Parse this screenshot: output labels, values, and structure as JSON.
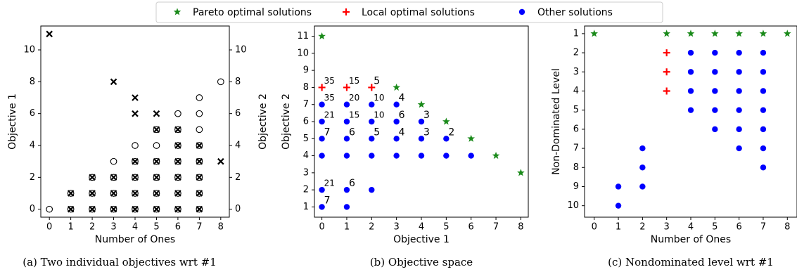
{
  "legend": {
    "placement": "top-center",
    "items": [
      {
        "label": "Pareto optimal solutions",
        "marker": "star",
        "color": "#1a8a1a"
      },
      {
        "label": "Local optimal solutions",
        "marker": "plus",
        "color": "#ff0000"
      },
      {
        "label": "Other solutions",
        "marker": "dot",
        "color": "#0000ff"
      }
    ]
  },
  "colors": {
    "pareto": "#1a8a1a",
    "local": "#ff0000",
    "other": "#0000ff",
    "axis": "#000000"
  },
  "chart_data": [
    {
      "type": "scatter",
      "caption": "(a) Two individual objectives wrt #1",
      "xlabel": "Number of Ones",
      "ylabel": "Objective 1",
      "ylabel_right": "Objective 2",
      "xlim": [
        -0.4,
        8.4
      ],
      "ylim": [
        -0.5,
        11.5
      ],
      "xticks": [
        0,
        1,
        2,
        3,
        4,
        5,
        6,
        7,
        8
      ],
      "yticks": [
        0,
        2,
        4,
        6,
        8,
        10
      ],
      "grid": false,
      "series": [
        {
          "marker": "x",
          "points": [
            [
              0,
              11
            ],
            [
              1,
              1
            ],
            [
              2,
              2
            ],
            [
              3,
              8
            ],
            [
              4,
              7
            ],
            [
              5,
              6
            ],
            [
              6,
              5
            ],
            [
              7,
              4
            ],
            [
              8,
              3
            ],
            [
              1,
              0
            ],
            [
              2,
              0
            ],
            [
              2,
              1
            ],
            [
              3,
              0
            ],
            [
              3,
              1
            ],
            [
              3,
              2
            ],
            [
              4,
              0
            ],
            [
              4,
              1
            ],
            [
              4,
              2
            ],
            [
              4,
              3
            ],
            [
              5,
              0
            ],
            [
              5,
              1
            ],
            [
              5,
              2
            ],
            [
              5,
              3
            ],
            [
              6,
              0
            ],
            [
              6,
              1
            ],
            [
              6,
              2
            ],
            [
              6,
              3
            ],
            [
              7,
              0
            ],
            [
              7,
              1
            ],
            [
              7,
              2
            ],
            [
              7,
              3
            ],
            [
              4,
              6
            ],
            [
              5,
              5
            ],
            [
              6,
              4
            ]
          ]
        },
        {
          "marker": "circle",
          "points": [
            [
              0,
              0
            ],
            [
              1,
              0
            ],
            [
              1,
              1
            ],
            [
              2,
              0
            ],
            [
              2,
              1
            ],
            [
              2,
              2
            ],
            [
              3,
              0
            ],
            [
              3,
              1
            ],
            [
              3,
              2
            ],
            [
              3,
              3
            ],
            [
              4,
              0
            ],
            [
              4,
              1
            ],
            [
              4,
              2
            ],
            [
              4,
              3
            ],
            [
              4,
              4
            ],
            [
              5,
              0
            ],
            [
              5,
              1
            ],
            [
              5,
              2
            ],
            [
              5,
              3
            ],
            [
              5,
              4
            ],
            [
              5,
              5
            ],
            [
              6,
              0
            ],
            [
              6,
              1
            ],
            [
              6,
              2
            ],
            [
              6,
              3
            ],
            [
              6,
              4
            ],
            [
              6,
              5
            ],
            [
              6,
              6
            ],
            [
              7,
              0
            ],
            [
              7,
              1
            ],
            [
              7,
              2
            ],
            [
              7,
              3
            ],
            [
              7,
              4
            ],
            [
              7,
              5
            ],
            [
              7,
              6
            ],
            [
              7,
              7
            ],
            [
              8,
              8
            ]
          ]
        }
      ]
    },
    {
      "type": "scatter",
      "caption": "(b) Objective space",
      "xlabel": "Objective 1",
      "ylabel": "Objective 2",
      "xlim": [
        -0.3,
        8.3
      ],
      "ylim": [
        0.4,
        11.6
      ],
      "xticks": [
        0,
        1,
        2,
        3,
        4,
        5,
        6,
        7,
        8
      ],
      "yticks": [
        1,
        2,
        3,
        4,
        5,
        6,
        7,
        8,
        9,
        10,
        11
      ],
      "grid": false,
      "series": [
        {
          "category": "pareto",
          "marker": "star",
          "points": [
            [
              0,
              11
            ],
            [
              3,
              8
            ],
            [
              4,
              7
            ],
            [
              5,
              6
            ],
            [
              6,
              5
            ],
            [
              7,
              4
            ],
            [
              8,
              3
            ]
          ]
        },
        {
          "category": "local",
          "marker": "plus",
          "points": [
            [
              0,
              8
            ],
            [
              1,
              8
            ],
            [
              2,
              8
            ]
          ]
        },
        {
          "category": "other",
          "marker": "dot",
          "points": [
            [
              0,
              7
            ],
            [
              1,
              7
            ],
            [
              2,
              7
            ],
            [
              3,
              7
            ],
            [
              0,
              6
            ],
            [
              1,
              6
            ],
            [
              2,
              6
            ],
            [
              3,
              6
            ],
            [
              4,
              6
            ],
            [
              0,
              5
            ],
            [
              1,
              5
            ],
            [
              2,
              5
            ],
            [
              3,
              5
            ],
            [
              4,
              5
            ],
            [
              5,
              5
            ],
            [
              0,
              4
            ],
            [
              1,
              4
            ],
            [
              2,
              4
            ],
            [
              3,
              4
            ],
            [
              4,
              4
            ],
            [
              5,
              4
            ],
            [
              6,
              4
            ],
            [
              0,
              2
            ],
            [
              1,
              2
            ],
            [
              2,
              2
            ],
            [
              0,
              1
            ],
            [
              1,
              1
            ]
          ]
        }
      ],
      "annotations": [
        {
          "x": 0,
          "y": 8,
          "text": "35",
          "size": "small"
        },
        {
          "x": 1,
          "y": 8,
          "text": "15",
          "size": "small"
        },
        {
          "x": 2,
          "y": 8,
          "text": "5",
          "size": "large"
        },
        {
          "x": 0,
          "y": 7,
          "text": "35",
          "size": "small"
        },
        {
          "x": 1,
          "y": 7,
          "text": "20",
          "size": "small"
        },
        {
          "x": 2,
          "y": 7,
          "text": "10",
          "size": "small"
        },
        {
          "x": 3,
          "y": 7,
          "text": "4",
          "size": "large"
        },
        {
          "x": 0,
          "y": 6,
          "text": "21",
          "size": "small"
        },
        {
          "x": 1,
          "y": 6,
          "text": "15",
          "size": "small"
        },
        {
          "x": 2,
          "y": 6,
          "text": "10",
          "size": "small"
        },
        {
          "x": 3,
          "y": 6,
          "text": "6",
          "size": "large"
        },
        {
          "x": 4,
          "y": 6,
          "text": "3",
          "size": "large"
        },
        {
          "x": 0,
          "y": 5,
          "text": "7",
          "size": "large"
        },
        {
          "x": 1,
          "y": 5,
          "text": "6",
          "size": "large"
        },
        {
          "x": 2,
          "y": 5,
          "text": "5",
          "size": "large"
        },
        {
          "x": 3,
          "y": 5,
          "text": "4",
          "size": "large"
        },
        {
          "x": 4,
          "y": 5,
          "text": "3",
          "size": "large"
        },
        {
          "x": 5,
          "y": 5,
          "text": "2",
          "size": "large"
        },
        {
          "x": 0,
          "y": 2,
          "text": "21",
          "size": "small"
        },
        {
          "x": 1,
          "y": 2,
          "text": "6",
          "size": "large"
        },
        {
          "x": 0,
          "y": 1,
          "text": "7",
          "size": "large"
        }
      ]
    },
    {
      "type": "scatter",
      "caption": "(c) Nondominated level wrt #1",
      "xlabel": "Number of Ones",
      "ylabel": "Non-Dominated Level",
      "xlim": [
        -0.4,
        8.4
      ],
      "ylim": [
        10.6,
        0.6
      ],
      "y_inverted": true,
      "xticks": [
        0,
        1,
        2,
        3,
        4,
        5,
        6,
        7,
        8
      ],
      "yticks": [
        1,
        2,
        3,
        4,
        5,
        6,
        7,
        8,
        9,
        10
      ],
      "grid": false,
      "series": [
        {
          "category": "pareto",
          "marker": "star",
          "points": [
            [
              0,
              1
            ],
            [
              3,
              1
            ],
            [
              4,
              1
            ],
            [
              5,
              1
            ],
            [
              6,
              1
            ],
            [
              7,
              1
            ],
            [
              8,
              1
            ]
          ]
        },
        {
          "category": "local",
          "marker": "plus",
          "points": [
            [
              3,
              2
            ],
            [
              3,
              3
            ],
            [
              3,
              4
            ]
          ]
        },
        {
          "category": "other",
          "marker": "dot",
          "points": [
            [
              4,
              2
            ],
            [
              4,
              3
            ],
            [
              4,
              4
            ],
            [
              4,
              5
            ],
            [
              5,
              2
            ],
            [
              5,
              3
            ],
            [
              5,
              4
            ],
            [
              5,
              5
            ],
            [
              5,
              6
            ],
            [
              6,
              2
            ],
            [
              6,
              3
            ],
            [
              6,
              4
            ],
            [
              6,
              5
            ],
            [
              6,
              6
            ],
            [
              6,
              7
            ],
            [
              7,
              2
            ],
            [
              7,
              3
            ],
            [
              7,
              4
            ],
            [
              7,
              5
            ],
            [
              7,
              6
            ],
            [
              7,
              7
            ],
            [
              7,
              8
            ],
            [
              2,
              7
            ],
            [
              2,
              8
            ],
            [
              2,
              9
            ],
            [
              1,
              9
            ],
            [
              1,
              10
            ]
          ]
        }
      ]
    }
  ]
}
